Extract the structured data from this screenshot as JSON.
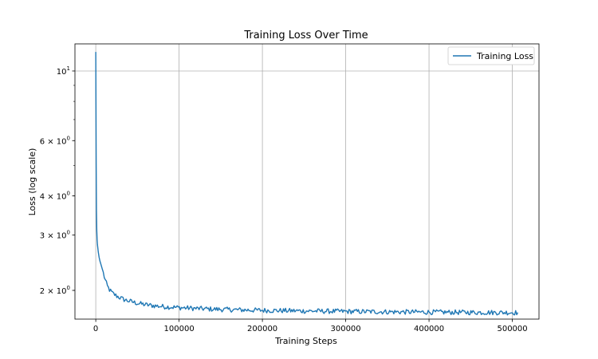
{
  "chart_data": {
    "type": "line",
    "title": "Training Loss Over Time",
    "xlabel": "Training Steps",
    "ylabel": "Loss (log scale)",
    "yscale": "log",
    "xlim": [
      -25000,
      532000
    ],
    "ylim": [
      1.62,
      12.2
    ],
    "grid": true,
    "legend_position": "top-right",
    "x_ticks": [
      0,
      100000,
      200000,
      300000,
      400000,
      500000
    ],
    "x_tick_labels": [
      "0",
      "100000",
      "200000",
      "300000",
      "400000",
      "500000"
    ],
    "y_ticks": [
      10,
      6,
      4,
      3,
      2
    ],
    "y_tick_labels": [
      {
        "base": "10",
        "sup": "1"
      },
      {
        "base": "6 × 10",
        "sup": "0"
      },
      {
        "base": "4 × 10",
        "sup": "0"
      },
      {
        "base": "3 × 10",
        "sup": "0"
      },
      {
        "base": "2 × 10",
        "sup": "0"
      }
    ],
    "y_minor_ticks": [
      2,
      3,
      4,
      5,
      6,
      7,
      8,
      9
    ],
    "series": [
      {
        "name": "Training Loss",
        "color": "#1f77b4",
        "x": [
          0,
          200,
          500,
          800,
          1200,
          1600,
          2000,
          3000,
          4000,
          5000,
          6000,
          7000,
          8000,
          10000,
          12000,
          14000,
          17000,
          20000,
          25000,
          30000,
          35000,
          40000,
          50000,
          60000,
          70000,
          80000,
          90000,
          100000,
          120000,
          140000,
          160000,
          180000,
          200000,
          250000,
          300000,
          350000,
          400000,
          450000,
          500000,
          507000
        ],
        "y": [
          11.5,
          8.2,
          5.0,
          3.6,
          3.1,
          2.9,
          2.8,
          2.65,
          2.55,
          2.48,
          2.43,
          2.38,
          2.33,
          2.22,
          2.13,
          2.06,
          2.0,
          1.96,
          1.92,
          1.89,
          1.865,
          1.85,
          1.82,
          1.8,
          1.787,
          1.777,
          1.77,
          1.763,
          1.752,
          1.743,
          1.737,
          1.732,
          1.728,
          1.72,
          1.714,
          1.709,
          1.705,
          1.702,
          1.7,
          1.699
        ]
      }
    ]
  }
}
